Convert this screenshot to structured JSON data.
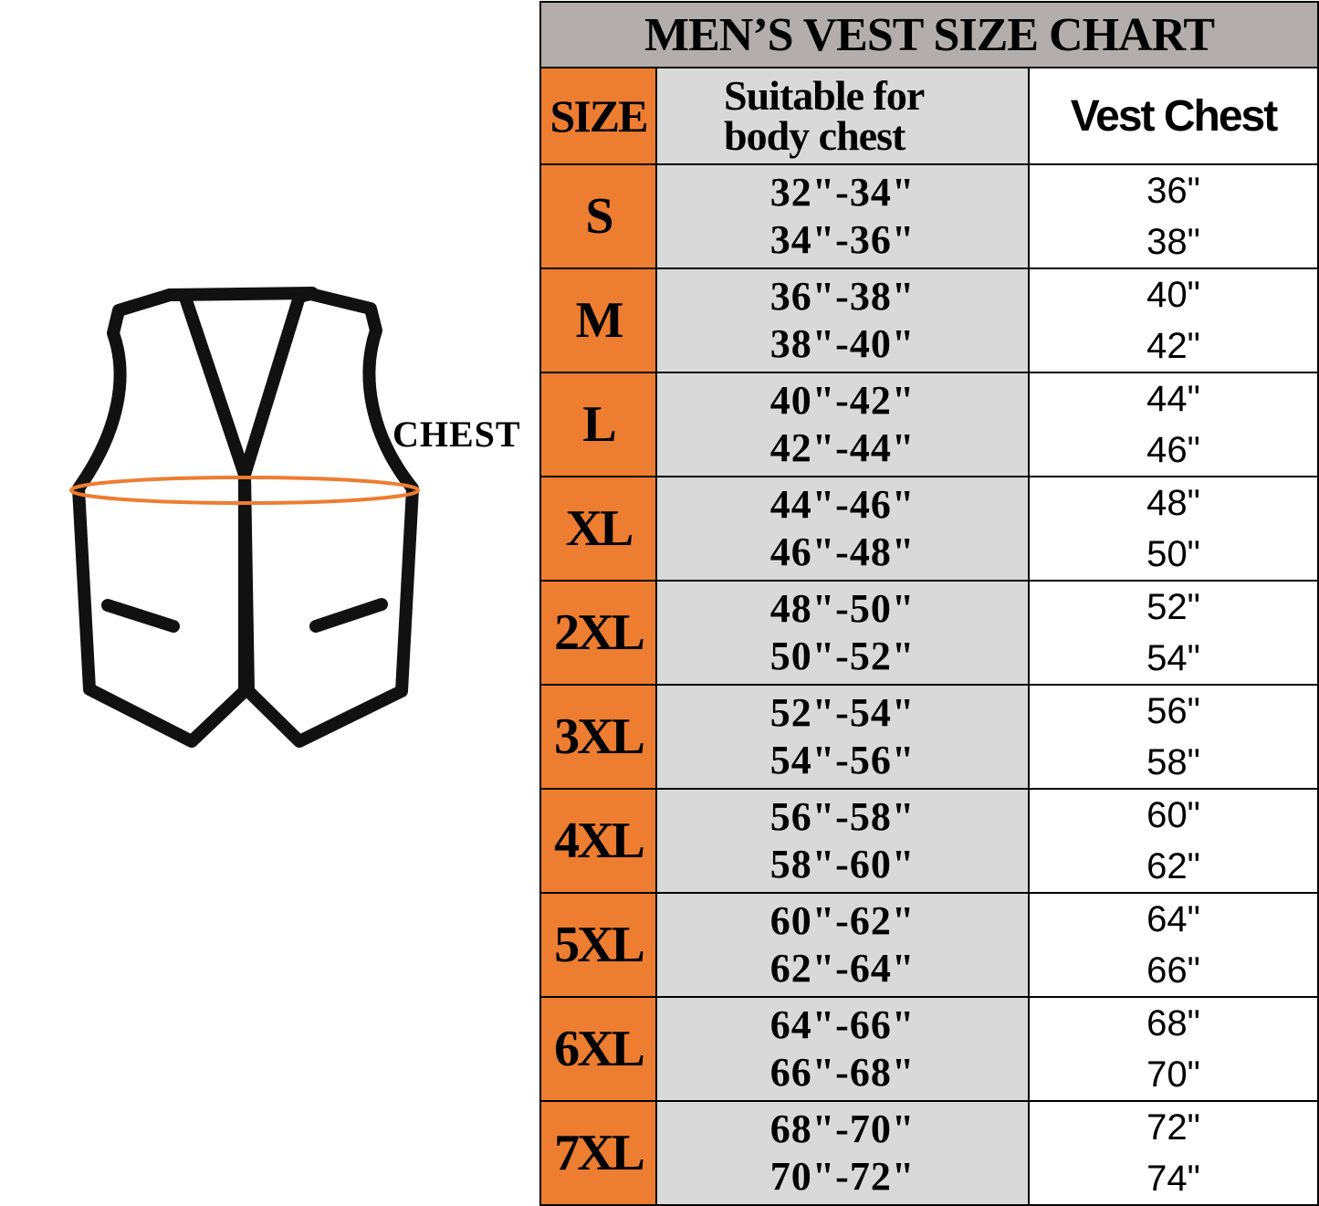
{
  "illustration": {
    "chest_label": "CHEST",
    "chest_line_color": "#ed7d31",
    "outline_color": "#111111"
  },
  "colors": {
    "title_bg": "#b3aeab",
    "size_bg": "#ed7d31",
    "body_bg": "#d9d9d9",
    "vest_bg": "#ffffff"
  },
  "chart_data": {
    "type": "table",
    "title": "MEN’S VEST SIZE CHART",
    "columns": [
      "SIZE",
      "Suitable for body chest",
      "Vest Chest"
    ],
    "rows": [
      {
        "size": "S",
        "body": [
          "32\"-34\"",
          "34\"-36\""
        ],
        "vest": [
          "36\"",
          "38\""
        ]
      },
      {
        "size": "M",
        "body": [
          "36\"-38\"",
          "38\"-40\""
        ],
        "vest": [
          "40\"",
          "42\""
        ]
      },
      {
        "size": "L",
        "body": [
          "40\"-42\"",
          "42\"-44\""
        ],
        "vest": [
          "44\"",
          "46\""
        ]
      },
      {
        "size": "XL",
        "body": [
          "44\"-46\"",
          "46\"-48\""
        ],
        "vest": [
          "48\"",
          "50\""
        ]
      },
      {
        "size": "2XL",
        "body": [
          "48\"-50\"",
          "50\"-52\""
        ],
        "vest": [
          "52\"",
          "54\""
        ]
      },
      {
        "size": "3XL",
        "body": [
          "52\"-54\"",
          "54\"-56\""
        ],
        "vest": [
          "56\"",
          "58\""
        ]
      },
      {
        "size": "4XL",
        "body": [
          "56\"-58\"",
          "58\"-60\""
        ],
        "vest": [
          "60\"",
          "62\""
        ]
      },
      {
        "size": "5XL",
        "body": [
          "60\"-62\"",
          "62\"-64\""
        ],
        "vest": [
          "64\"",
          "66\""
        ]
      },
      {
        "size": "6XL",
        "body": [
          "64\"-66\"",
          "66\"-68\""
        ],
        "vest": [
          "68\"",
          "70\""
        ]
      },
      {
        "size": "7XL",
        "body": [
          "68\"-70\"",
          "70\"-72\""
        ],
        "vest": [
          "72\"",
          "74\""
        ]
      }
    ]
  }
}
